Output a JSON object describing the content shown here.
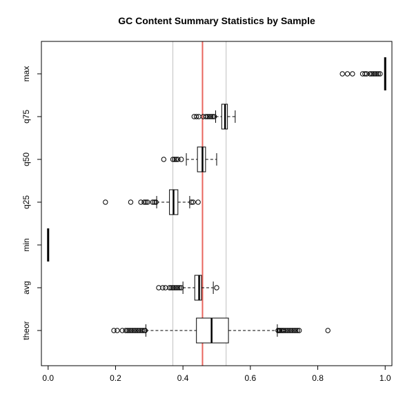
{
  "chart_data": {
    "type": "boxplot",
    "orientation": "horizontal",
    "title": "GC Content Summary Statistics by Sample",
    "xlabel": "",
    "ylabel": "",
    "xlim": [
      -0.02,
      1.02
    ],
    "x_ticks": [
      0.0,
      0.2,
      0.4,
      0.6,
      0.8,
      1.0
    ],
    "x_tick_labels": [
      "0.0",
      "0.2",
      "0.4",
      "0.6",
      "0.8",
      "1.0"
    ],
    "grid": false,
    "reference_lines": [
      {
        "x": 0.37,
        "color": "#c8c8c8"
      },
      {
        "x": 0.528,
        "color": "#c8c8c8"
      },
      {
        "x": 0.458,
        "color": "#e8655d"
      }
    ],
    "categories": [
      "theor",
      "avg",
      "min",
      "q25",
      "q50",
      "q75",
      "max"
    ],
    "boxes": [
      {
        "label": "theor",
        "whisker_low": 0.29,
        "q1": 0.44,
        "median": 0.485,
        "q3": 0.535,
        "whisker_high": 0.68,
        "outliers": [
          0.195,
          0.205,
          0.22,
          0.23,
          0.235,
          0.24,
          0.245,
          0.25,
          0.255,
          0.26,
          0.265,
          0.27,
          0.275,
          0.28,
          0.285,
          0.288,
          0.682,
          0.685,
          0.688,
          0.692,
          0.696,
          0.7,
          0.705,
          0.71,
          0.715,
          0.72,
          0.725,
          0.73,
          0.735,
          0.74,
          0.745,
          0.83
        ]
      },
      {
        "label": "avg",
        "whisker_low": 0.4,
        "q1": 0.435,
        "median": 0.448,
        "q3": 0.455,
        "whisker_high": 0.49,
        "outliers": [
          0.328,
          0.34,
          0.348,
          0.36,
          0.365,
          0.37,
          0.375,
          0.38,
          0.385,
          0.39,
          0.395,
          0.5
        ]
      },
      {
        "label": "min",
        "whisker_low": 0.0,
        "q1": 0.0,
        "median": 0.0,
        "q3": 0.0,
        "whisker_high": 0.0,
        "outliers": []
      },
      {
        "label": "q25",
        "whisker_low": 0.322,
        "q1": 0.36,
        "median": 0.372,
        "q3": 0.385,
        "whisker_high": 0.42,
        "outliers": [
          0.17,
          0.245,
          0.275,
          0.285,
          0.29,
          0.295,
          0.31,
          0.315,
          0.32,
          0.425,
          0.43,
          0.445
        ]
      },
      {
        "label": "q50",
        "whisker_low": 0.41,
        "q1": 0.443,
        "median": 0.458,
        "q3": 0.467,
        "whisker_high": 0.5,
        "outliers": [
          0.343,
          0.37,
          0.375,
          0.38,
          0.385,
          0.395
        ]
      },
      {
        "label": "q75",
        "whisker_low": 0.497,
        "q1": 0.515,
        "median": 0.525,
        "q3": 0.532,
        "whisker_high": 0.555,
        "outliers": [
          0.433,
          0.44,
          0.447,
          0.46,
          0.468,
          0.473,
          0.478,
          0.483,
          0.488,
          0.493
        ]
      },
      {
        "label": "max",
        "whisker_low": 1.0,
        "q1": 1.0,
        "median": 1.0,
        "q3": 1.0,
        "whisker_high": 1.0,
        "outliers": [
          0.873,
          0.888,
          0.903,
          0.933,
          0.94,
          0.945,
          0.955,
          0.96,
          0.965,
          0.97,
          0.975,
          0.98,
          0.985
        ]
      }
    ]
  }
}
